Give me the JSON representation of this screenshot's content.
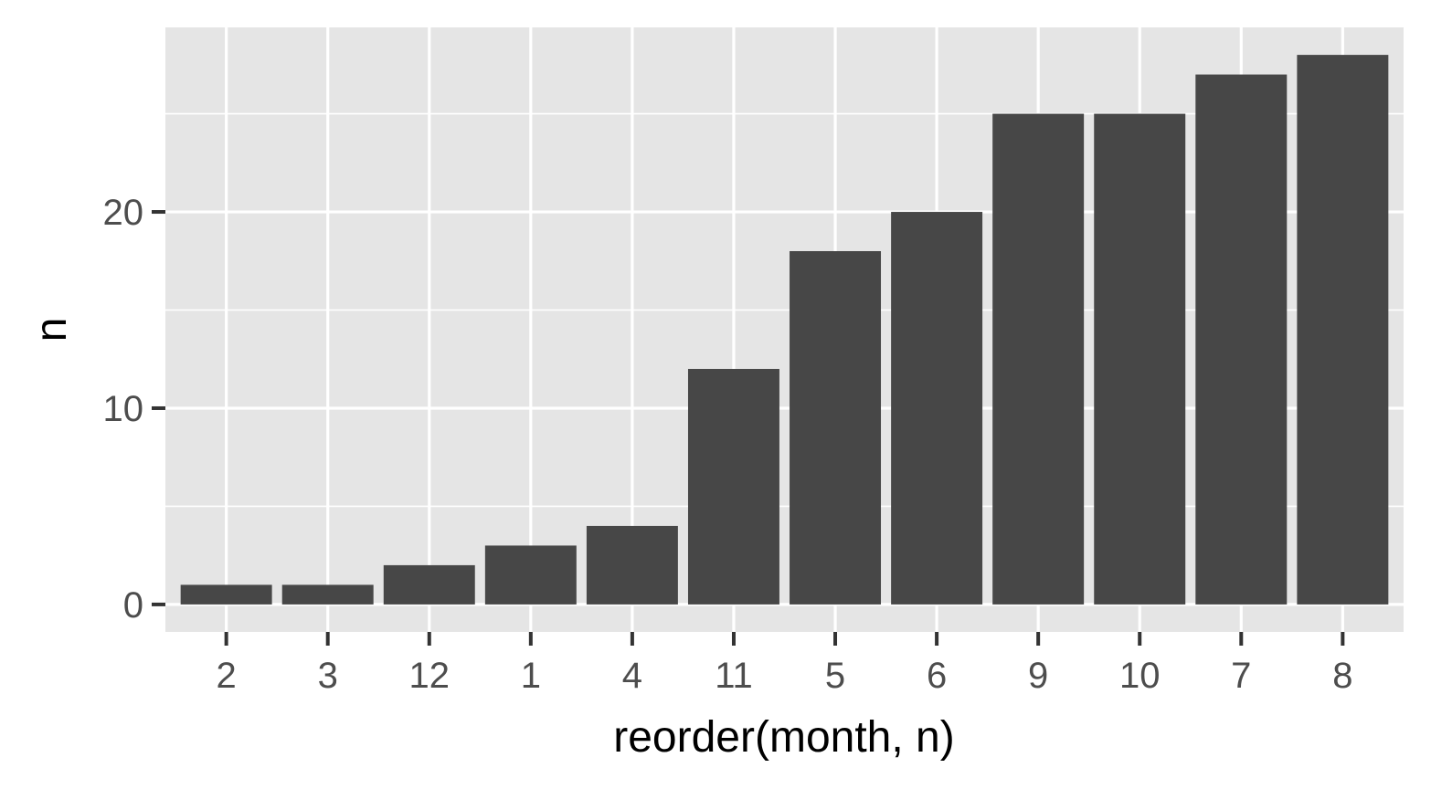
{
  "chart_data": {
    "type": "bar",
    "xlabel": "reorder(month, n)",
    "ylabel": "n",
    "categories": [
      "2",
      "3",
      "12",
      "1",
      "4",
      "11",
      "5",
      "6",
      "9",
      "10",
      "7",
      "8"
    ],
    "values": [
      1,
      1,
      2,
      3,
      4,
      12,
      18,
      20,
      25,
      25,
      27,
      28
    ],
    "ylim": [
      -1.4,
      29.4
    ],
    "y_ticks": [
      0,
      10,
      20
    ],
    "y_minor_ticks": [
      5,
      15,
      25
    ],
    "grid": true,
    "colors": {
      "panel_background": "#e5e5e5",
      "grid": "#ffffff",
      "bar": "#474747",
      "tick": "#333333",
      "tick_label": "#4d4d4d"
    }
  }
}
